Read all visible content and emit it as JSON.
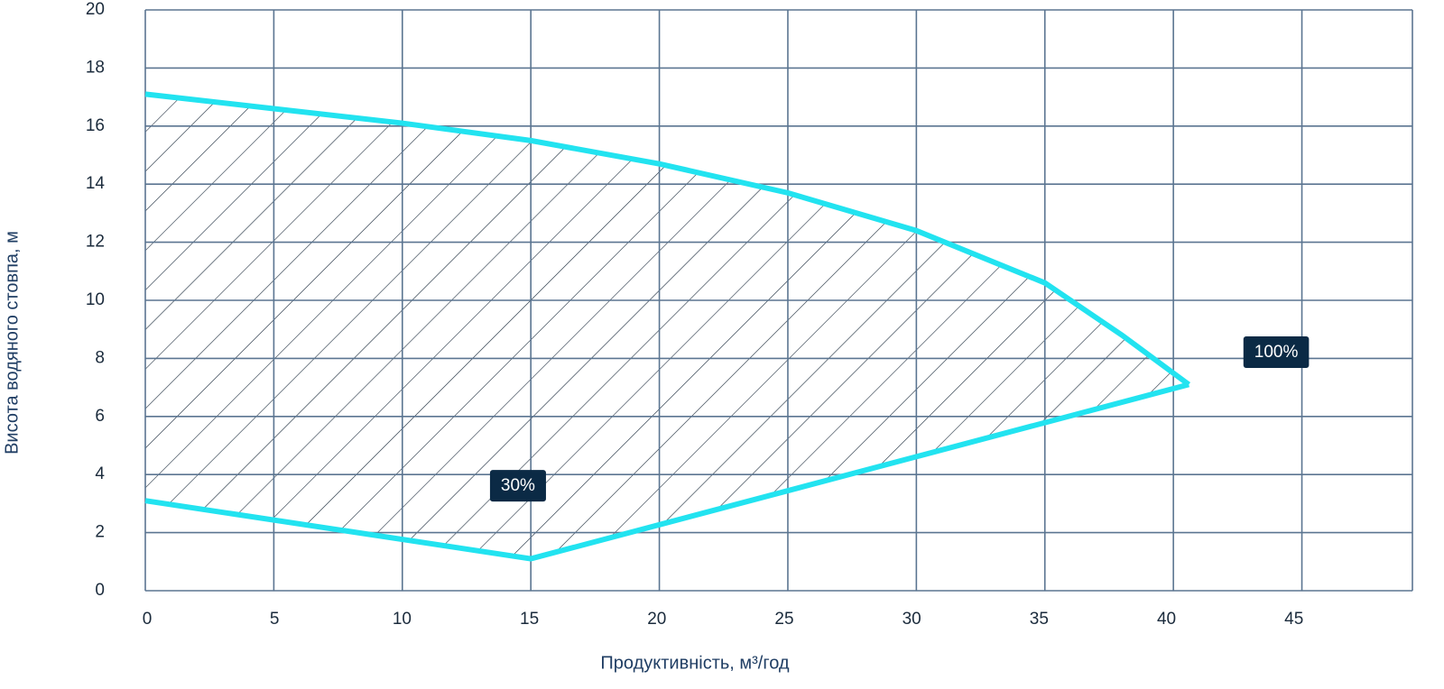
{
  "chart_data": {
    "type": "line",
    "x_label": "Продуктивність, м³/год",
    "y_label": "Висота водяного стовпа, м",
    "xlim": [
      0,
      49.3
    ],
    "xticks": [
      0,
      5,
      10,
      15,
      20,
      25,
      30,
      35,
      40,
      45
    ],
    "ylim": [
      0,
      20
    ],
    "yticks": [
      0,
      2,
      4,
      6,
      8,
      10,
      12,
      14,
      16,
      18,
      20
    ],
    "grid": true,
    "hatched_region": true,
    "series": [
      {
        "color": "#22e3f0",
        "x": [
          0,
          5,
          10,
          15,
          20,
          25,
          30,
          35,
          38,
          40.6
        ],
        "values": [
          17.1,
          16.6,
          16.1,
          15.5,
          14.7,
          13.7,
          12.4,
          10.6,
          8.8,
          7.1
        ]
      },
      {
        "color": "#22e3f0",
        "x": [
          0,
          15,
          40.6
        ],
        "values": [
          3.1,
          1.1,
          7.1
        ]
      }
    ],
    "annotations": [
      {
        "text": "30%",
        "x": 14.5,
        "y": 3.6
      },
      {
        "text": "100%",
        "x": 44,
        "y": 8.2
      }
    ]
  }
}
